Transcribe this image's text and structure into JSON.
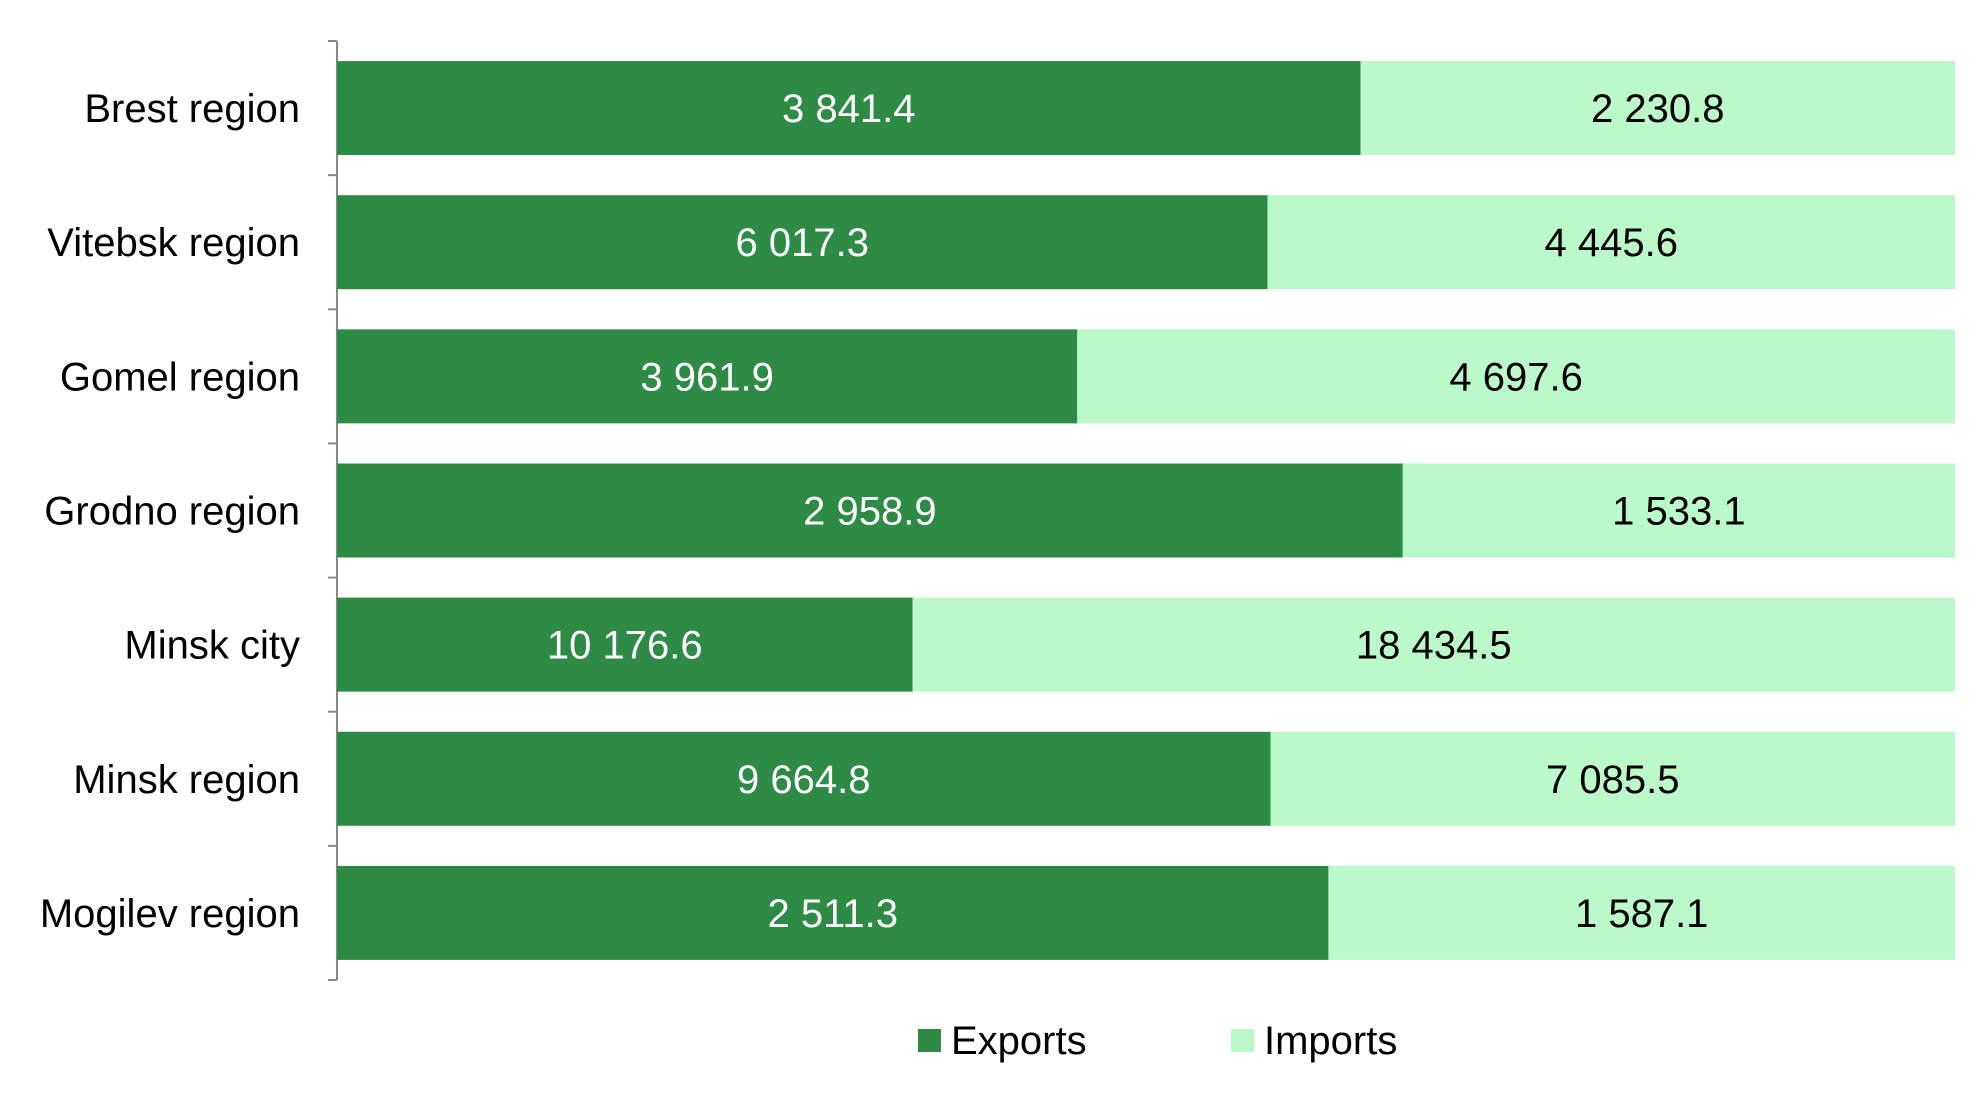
{
  "chart_data": {
    "type": "bar",
    "orientation": "horizontal",
    "stacking": "percent",
    "title": "",
    "xlabel": "",
    "ylabel": "",
    "categories": [
      "Brest region",
      "Vitebsk region",
      "Gomel region",
      "Grodno region",
      "Minsk city",
      "Minsk region",
      "Mogilev region"
    ],
    "category_display": [
      "Brest region",
      "Vitebsk region",
      "Gomel region",
      "Grodno region",
      "Minsk city",
      "Minsk region",
      "Mogilev region"
    ],
    "series": [
      {
        "name": "Exports",
        "color": "#2e8b45",
        "label_color": "#ffffff",
        "values": [
          3841.4,
          6017.3,
          3961.9,
          2958.9,
          10176.6,
          9664.8,
          2511.3
        ],
        "labels": [
          "3 841.4",
          "6 017.3",
          "3 961.9",
          "2 958.9",
          "10 176.6",
          "9 664.8",
          "2 511.3"
        ]
      },
      {
        "name": "Imports",
        "color": "#bbf9c9",
        "label_color": "#000000",
        "values": [
          2230.8,
          4445.6,
          4697.6,
          1533.1,
          18434.5,
          7085.5,
          1587.1
        ],
        "labels": [
          "2 230.8",
          "4 445.6",
          "4 697.6",
          "1 533.1",
          "18 434.5",
          "7 085.5",
          "1 587.1"
        ]
      }
    ],
    "grid": false,
    "legend_position": "bottom"
  }
}
